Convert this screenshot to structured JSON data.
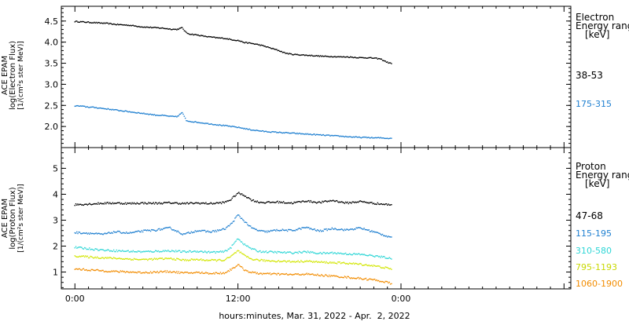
{
  "chart_data": [
    {
      "type": "scatter",
      "panel": "electron",
      "ylabel_lines": [
        "ACE EPAM",
        "log(Electron Flux)",
        "[1/(cm²s ster MeV)]"
      ],
      "ylim": [
        1.5,
        4.85
      ],
      "yticks": [
        2.0,
        2.5,
        3.0,
        3.5,
        4.0,
        4.5
      ],
      "ytick_labels": [
        "2.0",
        "2.5",
        "3.0",
        "3.5",
        "4.0",
        "4.5"
      ],
      "legend_title_lines": [
        "Electron",
        "Energy range",
        "[keV]"
      ],
      "series": [
        {
          "name": "38-53",
          "color": "#000000",
          "x": [
            0,
            0.5,
            1,
            1.5,
            2,
            2.5,
            3,
            3.5,
            4,
            4.5,
            5,
            5.5,
            6,
            6.5,
            7,
            7.5,
            7.9,
            8.2,
            8.5,
            9,
            9.5,
            10,
            10.5,
            11,
            11.5,
            12,
            12.5,
            13,
            13.5,
            14,
            14.5,
            15,
            15.5,
            16,
            16.5,
            17,
            17.5,
            18,
            18.5,
            19,
            19.5,
            20,
            20.5,
            21,
            21.5,
            22,
            22.5,
            23,
            23.3
          ],
          "y": [
            4.49,
            4.48,
            4.47,
            4.46,
            4.45,
            4.44,
            4.42,
            4.41,
            4.4,
            4.38,
            4.36,
            4.35,
            4.34,
            4.33,
            4.31,
            4.3,
            4.34,
            4.22,
            4.19,
            4.17,
            4.14,
            4.12,
            4.1,
            4.09,
            4.06,
            4.04,
            3.99,
            3.97,
            3.94,
            3.9,
            3.85,
            3.8,
            3.74,
            3.71,
            3.7,
            3.69,
            3.68,
            3.67,
            3.66,
            3.66,
            3.65,
            3.65,
            3.64,
            3.63,
            3.63,
            3.62,
            3.6,
            3.52,
            3.49
          ]
        },
        {
          "name": "175-315",
          "color": "#1e7fd0",
          "x": [
            0,
            0.5,
            1,
            1.5,
            2,
            2.5,
            3,
            3.5,
            4,
            4.5,
            5,
            5.5,
            6,
            6.5,
            7,
            7.5,
            7.9,
            8.2,
            8.5,
            9,
            9.5,
            10,
            10.5,
            11,
            11.5,
            12,
            12.5,
            13,
            13.5,
            14,
            14.5,
            15,
            15.5,
            16,
            16.5,
            17,
            17.5,
            18,
            18.5,
            19,
            19.5,
            20,
            20.5,
            21,
            21.5,
            22,
            22.5,
            23,
            23.3
          ],
          "y": [
            2.49,
            2.48,
            2.46,
            2.45,
            2.43,
            2.41,
            2.39,
            2.37,
            2.35,
            2.33,
            2.31,
            2.29,
            2.27,
            2.26,
            2.24,
            2.23,
            2.33,
            2.14,
            2.12,
            2.1,
            2.08,
            2.06,
            2.04,
            2.02,
            2.0,
            1.98,
            1.95,
            1.92,
            1.9,
            1.88,
            1.87,
            1.86,
            1.85,
            1.84,
            1.83,
            1.82,
            1.81,
            1.8,
            1.79,
            1.78,
            1.77,
            1.76,
            1.75,
            1.74,
            1.74,
            1.73,
            1.73,
            1.72,
            1.72
          ]
        }
      ]
    },
    {
      "type": "scatter",
      "panel": "proton",
      "ylabel_lines": [
        "ACE EPAM",
        "log(Proton Flux)",
        "[1/(cm²s ster MeV)]"
      ],
      "ylim": [
        0.35,
        5.8
      ],
      "yticks": [
        1,
        2,
        3,
        4,
        5
      ],
      "ytick_labels": [
        "1",
        "2",
        "3",
        "4",
        "5"
      ],
      "legend_title_lines": [
        "Proton",
        "Energy range",
        "[keV]"
      ],
      "series": [
        {
          "name": "47-68",
          "color": "#000000",
          "x": [
            0,
            1,
            2,
            3,
            4,
            5,
            6,
            7,
            8,
            9,
            10,
            11,
            11.5,
            12,
            12.5,
            13,
            13.5,
            14,
            15,
            16,
            17,
            18,
            19,
            20,
            21,
            22,
            23,
            23.3
          ],
          "y": [
            3.6,
            3.62,
            3.65,
            3.66,
            3.64,
            3.66,
            3.65,
            3.67,
            3.64,
            3.66,
            3.64,
            3.68,
            3.8,
            4.05,
            3.95,
            3.78,
            3.7,
            3.68,
            3.7,
            3.66,
            3.74,
            3.68,
            3.76,
            3.66,
            3.72,
            3.65,
            3.6,
            3.6
          ]
        },
        {
          "name": "115-195",
          "color": "#1e7fd0",
          "x": [
            0,
            1,
            2,
            3,
            4,
            5,
            6,
            7,
            8,
            9,
            10,
            11,
            11.5,
            12,
            12.5,
            13,
            13.5,
            14,
            15,
            16,
            17,
            18,
            19,
            20,
            21,
            22,
            23,
            23.3
          ],
          "y": [
            2.52,
            2.5,
            2.45,
            2.55,
            2.5,
            2.58,
            2.62,
            2.7,
            2.45,
            2.6,
            2.55,
            2.65,
            2.85,
            3.2,
            2.95,
            2.7,
            2.6,
            2.55,
            2.62,
            2.6,
            2.72,
            2.58,
            2.68,
            2.62,
            2.7,
            2.55,
            2.38,
            2.35
          ]
        },
        {
          "name": "310-580",
          "color": "#2fd6d6",
          "x": [
            0,
            1,
            2,
            3,
            4,
            5,
            6,
            7,
            8,
            9,
            10,
            11,
            11.5,
            12,
            12.5,
            13,
            13.5,
            14,
            15,
            16,
            17,
            18,
            19,
            20,
            21,
            22,
            23,
            23.3
          ],
          "y": [
            1.95,
            1.9,
            1.85,
            1.82,
            1.8,
            1.78,
            1.8,
            1.82,
            1.78,
            1.8,
            1.76,
            1.78,
            1.95,
            2.3,
            2.05,
            1.9,
            1.8,
            1.78,
            1.76,
            1.74,
            1.78,
            1.72,
            1.74,
            1.7,
            1.68,
            1.62,
            1.55,
            1.5
          ]
        },
        {
          "name": "795-1193",
          "color": "#d2e600",
          "x": [
            0,
            1,
            2,
            3,
            4,
            5,
            6,
            7,
            8,
            9,
            10,
            11,
            11.5,
            12,
            12.5,
            13,
            13.5,
            14,
            15,
            16,
            17,
            18,
            19,
            20,
            21,
            22,
            23,
            23.3
          ],
          "y": [
            1.62,
            1.58,
            1.55,
            1.53,
            1.5,
            1.48,
            1.5,
            1.52,
            1.46,
            1.48,
            1.45,
            1.46,
            1.6,
            1.82,
            1.62,
            1.5,
            1.46,
            1.44,
            1.42,
            1.4,
            1.42,
            1.38,
            1.36,
            1.34,
            1.3,
            1.24,
            1.15,
            1.1
          ]
        },
        {
          "name": "1060-1900",
          "color": "#f28c00",
          "x": [
            0,
            1,
            2,
            3,
            4,
            5,
            6,
            7,
            8,
            9,
            10,
            11,
            11.5,
            12,
            12.5,
            13,
            13.5,
            14,
            15,
            16,
            17,
            18,
            19,
            20,
            21,
            22,
            23,
            23.3
          ],
          "y": [
            1.12,
            1.08,
            1.05,
            1.02,
            1.0,
            0.98,
            1.0,
            1.02,
            0.96,
            0.98,
            0.95,
            0.96,
            1.1,
            1.28,
            1.08,
            0.98,
            0.95,
            0.93,
            0.92,
            0.9,
            0.92,
            0.88,
            0.84,
            0.8,
            0.75,
            0.7,
            0.6,
            0.55
          ]
        }
      ]
    }
  ],
  "x_axis": {
    "range_hours": [
      -1,
      36.5
    ],
    "ticks": [
      0,
      12,
      24
    ],
    "tick_labels": [
      "0:00",
      "12:00",
      "0:00"
    ],
    "xlabel": "hours:minutes, Mar. 31, 2022 - Apr.  2, 2022"
  }
}
